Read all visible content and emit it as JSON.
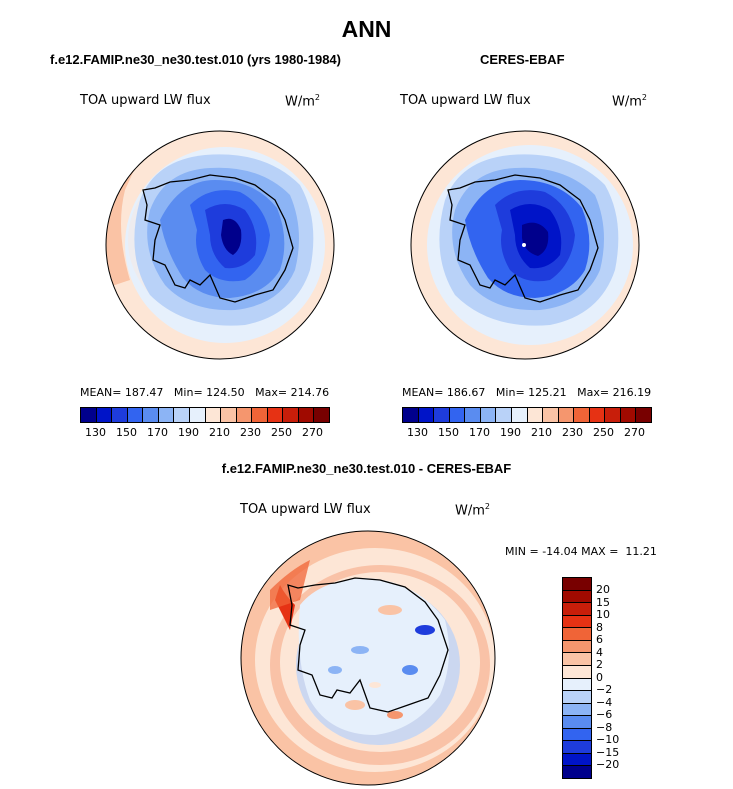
{
  "page": {
    "title": "ANN"
  },
  "panels": {
    "model": {
      "title": "f.e12.FAMIP.ne30_ne30.test.010 (yrs 1980-1984)",
      "var_label": "TOA upward LW flux",
      "units": "W/m",
      "units_sup": "2",
      "stats": {
        "mean_label": "MEAN=",
        "mean": "187.47",
        "min_label": "Min=",
        "min": "124.50",
        "max_label": "Max=",
        "max": "214.76"
      }
    },
    "obs": {
      "title": "CERES-EBAF",
      "var_label": "TOA upward LW flux",
      "units": "W/m",
      "units_sup": "2",
      "stats": {
        "mean_label": "MEAN=",
        "mean": "186.67",
        "min_label": "Min=",
        "min": "125.21",
        "max_label": "Max=",
        "max": "216.19"
      }
    },
    "diff": {
      "title": "f.e12.FAMIP.ne30_ne30.test.010 - CERES-EBAF",
      "var_label": "TOA upward LW flux",
      "units": "W/m",
      "units_sup": "2",
      "stats": {
        "min_label": "MIN =",
        "min": "-14.04",
        "max_label": "MAX =",
        "max": "11.21"
      }
    }
  },
  "colorbars": {
    "absolute": {
      "ticks": [
        "130",
        "150",
        "170",
        "190",
        "210",
        "230",
        "250",
        "270"
      ],
      "colors": [
        "#00008c",
        "#0014c8",
        "#1e3cdc",
        "#3264f0",
        "#5a8cf0",
        "#8cb4f5",
        "#b9d2f8",
        "#e6f0fc",
        "#fde6d6",
        "#fac3a5",
        "#f5966e",
        "#f06437",
        "#e63214",
        "#c81e0a",
        "#a00a00",
        "#780000"
      ]
    },
    "difference": {
      "ticks": [
        "20",
        "15",
        "10",
        "8",
        "6",
        "4",
        "2",
        "0",
        "−2",
        "−4",
        "−6",
        "−8",
        "−10",
        "−15",
        "−20"
      ],
      "colors": [
        "#780000",
        "#a00a00",
        "#c81e0a",
        "#e63214",
        "#f06437",
        "#f5966e",
        "#fac3a5",
        "#fde6d6",
        "#e6f0fc",
        "#b9d2f8",
        "#8cb4f5",
        "#5a8cf0",
        "#3264f0",
        "#1e3cdc",
        "#0014c8",
        "#00008c"
      ]
    }
  },
  "chart_data": [
    {
      "type": "heatmap",
      "title": "f.e12.FAMIP.ne30_ne30.test.010 (yrs 1980-1984)",
      "variable": "TOA upward LW flux",
      "units": "W/m2",
      "projection": "south-polar-stereographic",
      "mean": 187.47,
      "min": 124.5,
      "max": 214.76,
      "colorbar_levels": [
        130,
        140,
        150,
        160,
        170,
        180,
        190,
        200,
        210,
        220,
        230,
        240,
        250,
        260,
        270
      ],
      "colorbar_placement": "bottom"
    },
    {
      "type": "heatmap",
      "title": "CERES-EBAF",
      "variable": "TOA upward LW flux",
      "units": "W/m2",
      "projection": "south-polar-stereographic",
      "mean": 186.67,
      "min": 125.21,
      "max": 216.19,
      "colorbar_levels": [
        130,
        140,
        150,
        160,
        170,
        180,
        190,
        200,
        210,
        220,
        230,
        240,
        250,
        260,
        270
      ],
      "colorbar_placement": "bottom"
    },
    {
      "type": "heatmap",
      "title": "f.e12.FAMIP.ne30_ne30.test.010 - CERES-EBAF",
      "variable": "TOA upward LW flux",
      "units": "W/m2",
      "projection": "south-polar-stereographic",
      "min": -14.04,
      "max": 11.21,
      "colorbar_levels": [
        20,
        15,
        10,
        8,
        6,
        4,
        2,
        0,
        -2,
        -4,
        -6,
        -8,
        -10,
        -15,
        -20
      ],
      "colorbar_placement": "right"
    }
  ]
}
